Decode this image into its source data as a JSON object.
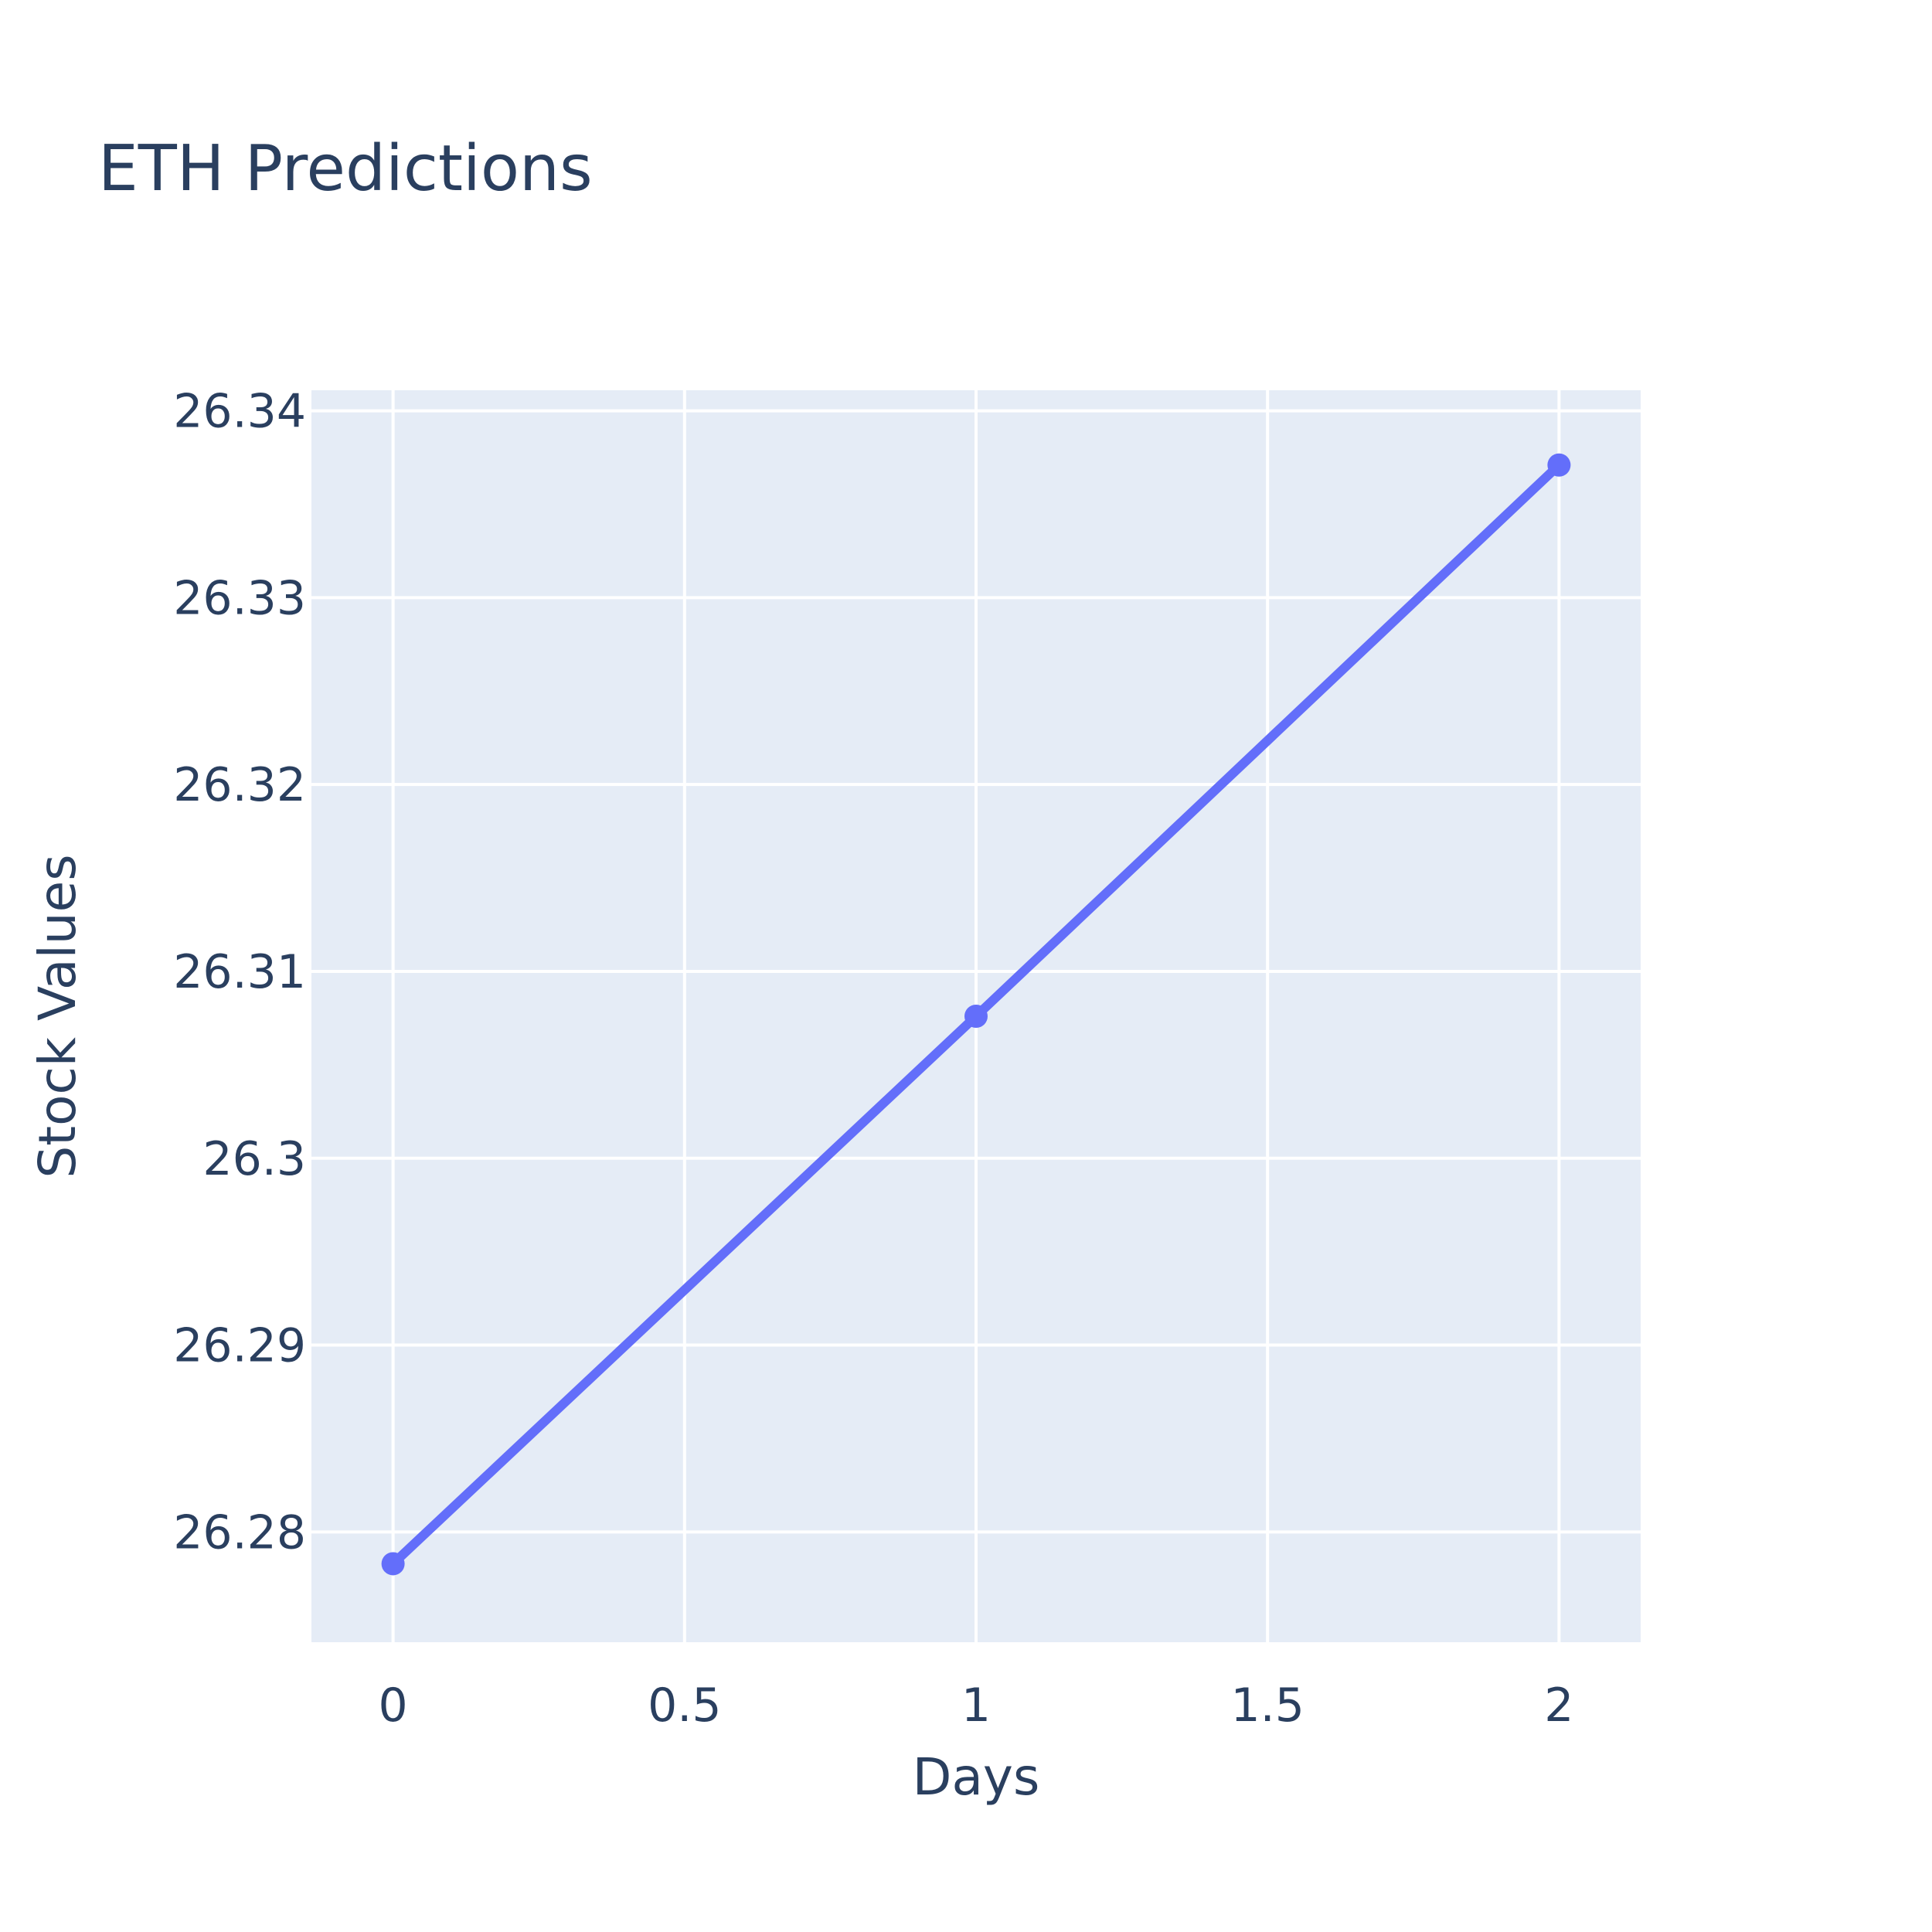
{
  "chart_data": {
    "type": "line",
    "title": "ETH Predictions",
    "xlabel": "Days",
    "ylabel": "Stock Values",
    "xlim": [
      -0.14,
      2.14
    ],
    "ylim": [
      26.2741,
      26.3411
    ],
    "x_ticks": [
      0,
      0.5,
      1,
      1.5,
      2
    ],
    "x_tick_labels": [
      "0",
      "0.5",
      "1",
      "1.5",
      "2"
    ],
    "y_ticks": [
      26.28,
      26.29,
      26.3,
      26.31,
      26.32,
      26.33,
      26.34
    ],
    "y_tick_labels": [
      "26.28",
      "26.29",
      "26.3",
      "26.31",
      "26.32",
      "26.33",
      "26.34"
    ],
    "grid": true,
    "legend": "none",
    "series": [
      {
        "x": [
          0,
          1,
          2
        ],
        "values": [
          26.2783,
          26.3076,
          26.3371
        ],
        "mode": "lines+markers"
      }
    ],
    "colors": {
      "line": "#636efa",
      "plot_bg": "#e5ecf6",
      "grid": "#ffffff",
      "text": "#2a3f5f",
      "paper_bg": "#ffffff"
    }
  }
}
